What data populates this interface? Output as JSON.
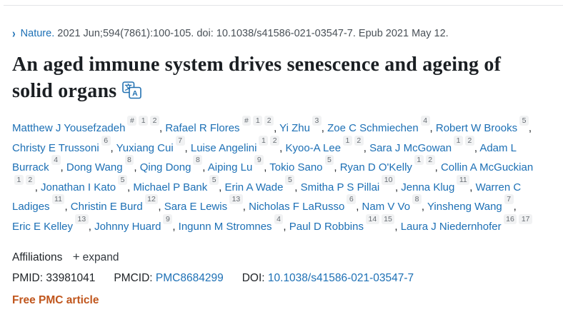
{
  "citation": {
    "journal": "Nature.",
    "rest": "2021 Jun;594(7861):100-105. doi: 10.1038/s41586-021-03547-7. Epub 2021 May 12."
  },
  "title": "An aged immune system drives senescence and ageing of solid organs",
  "authors": [
    {
      "name": "Matthew J Yousefzadeh",
      "sups": [
        "#",
        "1",
        "2"
      ]
    },
    {
      "name": "Rafael R Flores",
      "sups": [
        "#",
        "1",
        "2"
      ]
    },
    {
      "name": "Yi Zhu",
      "sups": [
        "3"
      ]
    },
    {
      "name": "Zoe C Schmiechen",
      "sups": [
        "4"
      ]
    },
    {
      "name": "Robert W Brooks",
      "sups": [
        "5"
      ]
    },
    {
      "name": "Christy E Trussoni",
      "sups": [
        "6"
      ]
    },
    {
      "name": "Yuxiang Cui",
      "sups": [
        "7"
      ]
    },
    {
      "name": "Luise Angelini",
      "sups": [
        "1",
        "2"
      ]
    },
    {
      "name": "Kyoo-A Lee",
      "sups": [
        "1",
        "2"
      ]
    },
    {
      "name": "Sara J McGowan",
      "sups": [
        "1",
        "2"
      ]
    },
    {
      "name": "Adam L Burrack",
      "sups": [
        "4"
      ]
    },
    {
      "name": "Dong Wang",
      "sups": [
        "8"
      ]
    },
    {
      "name": "Qing Dong",
      "sups": [
        "8"
      ]
    },
    {
      "name": "Aiping Lu",
      "sups": [
        "9"
      ]
    },
    {
      "name": "Tokio Sano",
      "sups": [
        "5"
      ]
    },
    {
      "name": "Ryan D O'Kelly",
      "sups": [
        "1",
        "2"
      ]
    },
    {
      "name": "Collin A McGuckian",
      "sups": [
        "1",
        "2"
      ]
    },
    {
      "name": "Jonathan I Kato",
      "sups": [
        "5"
      ]
    },
    {
      "name": "Michael P Bank",
      "sups": [
        "5"
      ]
    },
    {
      "name": "Erin A Wade",
      "sups": [
        "5"
      ]
    },
    {
      "name": "Smitha P S Pillai",
      "sups": [
        "10"
      ]
    },
    {
      "name": "Jenna Klug",
      "sups": [
        "11"
      ]
    },
    {
      "name": "Warren C Ladiges",
      "sups": [
        "11"
      ]
    },
    {
      "name": "Christin E Burd",
      "sups": [
        "12"
      ]
    },
    {
      "name": "Sara E Lewis",
      "sups": [
        "13"
      ]
    },
    {
      "name": "Nicholas F LaRusso",
      "sups": [
        "6"
      ]
    },
    {
      "name": "Nam V Vo",
      "sups": [
        "8"
      ]
    },
    {
      "name": "Yinsheng Wang",
      "sups": [
        "7"
      ]
    },
    {
      "name": "Eric E Kelley",
      "sups": [
        "13"
      ]
    },
    {
      "name": "Johnny Huard",
      "sups": [
        "9"
      ]
    },
    {
      "name": "Ingunn M Stromnes",
      "sups": [
        "4"
      ]
    },
    {
      "name": "Paul D Robbins",
      "sups": [
        "14",
        "15"
      ]
    },
    {
      "name": "Laura J Niedernhofer",
      "sups": [
        "16",
        "17"
      ]
    }
  ],
  "affiliations": {
    "label": "Affiliations",
    "plus": "+",
    "expand_label": "expand"
  },
  "identifiers": {
    "pmid_label": "PMID:",
    "pmid_value": "33981041",
    "pmcid_label": "PMCID:",
    "pmcid_value": "PMC8684299",
    "doi_label": "DOI:",
    "doi_value": "10.1038/s41586-021-03547-7"
  },
  "free_pmc_label": "Free PMC article",
  "icons": {
    "chevron": "›",
    "translate_icon": "translate-icon"
  },
  "colors": {
    "link_blue": "#1d70b5",
    "free_pmc_orange": "#c0561d",
    "badge_bg": "#f1f2f3",
    "badge_text": "#676d73"
  }
}
